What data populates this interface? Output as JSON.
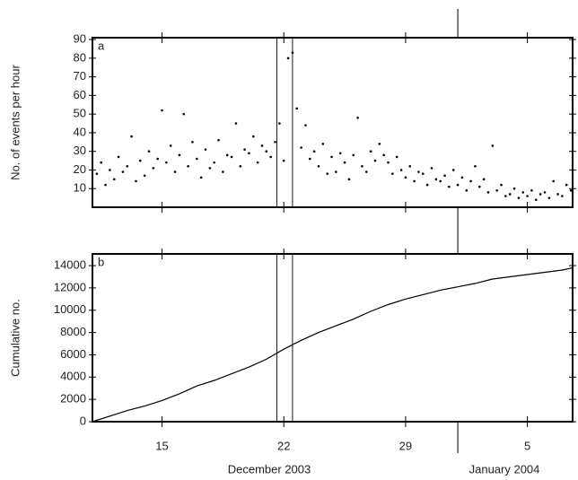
{
  "chart_data": [
    {
      "type": "scatter",
      "panel_label": "a",
      "y_label": "No. of events per hour",
      "x": [
        11.25,
        11.5,
        11.75,
        12,
        12.25,
        12.5,
        12.75,
        13,
        13.25,
        13.5,
        13.75,
        14,
        14.25,
        14.5,
        14.75,
        15,
        15.25,
        15.5,
        15.75,
        16,
        16.25,
        16.5,
        16.75,
        17,
        17.25,
        17.5,
        17.75,
        18,
        18.25,
        18.5,
        18.75,
        19,
        19.25,
        19.5,
        19.75,
        20,
        20.25,
        20.5,
        20.75,
        21,
        21.25,
        21.5,
        21.75,
        22,
        22.25,
        22.5,
        22.75,
        23,
        23.25,
        23.5,
        23.75,
        24,
        24.25,
        24.5,
        24.75,
        25,
        25.25,
        25.5,
        25.75,
        26,
        26.25,
        26.5,
        26.75,
        27,
        27.25,
        27.5,
        27.75,
        28,
        28.25,
        28.5,
        28.75,
        29,
        29.25,
        29.5,
        29.75,
        30,
        30.25,
        30.5,
        30.75,
        31,
        31.25,
        31.5,
        31.75,
        32,
        32.25,
        32.5,
        32.75,
        33,
        33.25,
        33.5,
        33.75,
        34,
        34.25,
        34.5,
        34.75,
        35,
        35.25,
        35.5,
        35.75,
        36,
        36.25,
        36.5,
        36.75,
        37,
        37.25,
        37.5,
        37.75,
        38,
        38.25,
        38.5
      ],
      "values": [
        18,
        24,
        12,
        20,
        15,
        27,
        19,
        22,
        38,
        14,
        25,
        17,
        30,
        21,
        26,
        52,
        24,
        33,
        19,
        28,
        50,
        22,
        35,
        26,
        16,
        31,
        21,
        24,
        36,
        19,
        28,
        27,
        45,
        22,
        31,
        29,
        38,
        24,
        33,
        30,
        27,
        35,
        45,
        25,
        80,
        83,
        53,
        32,
        44,
        26,
        30,
        22,
        34,
        18,
        27,
        19,
        29,
        24,
        15,
        28,
        48,
        22,
        19,
        30,
        25,
        34,
        28,
        24,
        18,
        27,
        20,
        16,
        22,
        14,
        19,
        18,
        12,
        21,
        15,
        14,
        17,
        11,
        20,
        12,
        16,
        9,
        14,
        22,
        11,
        15,
        8,
        33,
        9,
        12,
        6,
        7,
        10,
        5,
        8,
        6,
        9,
        4,
        7,
        8,
        5,
        14,
        7,
        6,
        12,
        9
      ],
      "color": "#000000",
      "xlim": [
        11,
        38.6
      ],
      "xticks": [
        15,
        22,
        29,
        {
          "value": 36,
          "label": "5"
        }
      ],
      "ylim": [
        0,
        91
      ],
      "yticks": [
        10,
        20,
        30,
        40,
        50,
        60,
        70,
        80,
        90
      ],
      "markers": [
        21.6,
        22.5
      ],
      "month_boundary": 32
    },
    {
      "type": "line",
      "panel_label": "b",
      "y_label": "Cumulative no.",
      "x": [
        11,
        12,
        13,
        14,
        15,
        16,
        17,
        18,
        19,
        20,
        21,
        22,
        23,
        24,
        25,
        26,
        27,
        28,
        29,
        30,
        31,
        32,
        33,
        34,
        35,
        36,
        37,
        38,
        38.6
      ],
      "values": [
        0,
        500,
        1000,
        1400,
        1900,
        2500,
        3200,
        3700,
        4300,
        4900,
        5600,
        6500,
        7300,
        8000,
        8600,
        9200,
        9900,
        10500,
        11000,
        11400,
        11800,
        12100,
        12400,
        12800,
        13000,
        13200,
        13400,
        13600,
        13800
      ],
      "color": "#000000",
      "xlim": [
        11,
        38.6
      ],
      "xticks": [
        15,
        22,
        29,
        {
          "value": 36,
          "label": "5"
        }
      ],
      "ylim": [
        0,
        15050
      ],
      "yticks": [
        0,
        2000,
        4000,
        6000,
        8000,
        10000,
        12000,
        14000
      ],
      "markers": [
        21.6,
        22.5
      ],
      "month_boundary": 32,
      "month_labels": [
        "December 2003",
        "January 2004"
      ]
    }
  ]
}
